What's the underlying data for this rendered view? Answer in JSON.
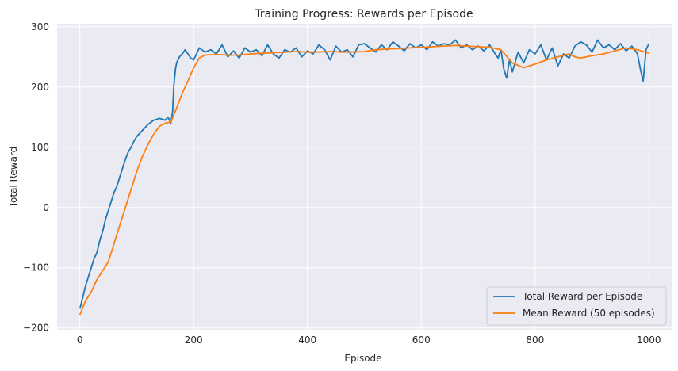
{
  "chart_data": {
    "type": "line",
    "title": "Training Progress: Rewards per Episode",
    "xlabel": "Episode",
    "ylabel": "Total Reward",
    "xlim": [
      -40,
      1040
    ],
    "ylim": [
      -203,
      305
    ],
    "xticks": [
      0,
      200,
      400,
      600,
      800,
      1000
    ],
    "yticks": [
      -200,
      -100,
      0,
      100,
      200,
      300
    ],
    "xtick_labels": [
      "0",
      "200",
      "400",
      "600",
      "800",
      "1000"
    ],
    "ytick_labels": [
      "−200",
      "−100",
      "0",
      "100",
      "200",
      "300"
    ],
    "grid": true,
    "legend_position": "bottom-right",
    "background": "#eaeaf2",
    "series": [
      {
        "name": "Total Reward per Episode",
        "color": "#1f77b4",
        "x": [
          0,
          5,
          10,
          15,
          20,
          25,
          30,
          35,
          40,
          45,
          50,
          55,
          60,
          65,
          70,
          75,
          80,
          85,
          90,
          95,
          100,
          110,
          120,
          130,
          140,
          150,
          155,
          160,
          163,
          165,
          168,
          170,
          175,
          180,
          185,
          190,
          195,
          200,
          210,
          220,
          230,
          240,
          250,
          260,
          270,
          280,
          290,
          300,
          310,
          320,
          330,
          340,
          350,
          360,
          370,
          380,
          390,
          400,
          410,
          420,
          430,
          440,
          450,
          460,
          470,
          480,
          490,
          500,
          510,
          520,
          530,
          540,
          550,
          560,
          570,
          580,
          590,
          600,
          610,
          620,
          630,
          640,
          650,
          660,
          670,
          680,
          690,
          700,
          710,
          720,
          730,
          735,
          740,
          745,
          750,
          755,
          760,
          770,
          780,
          790,
          800,
          810,
          820,
          830,
          840,
          850,
          860,
          870,
          880,
          890,
          900,
          910,
          920,
          930,
          940,
          950,
          960,
          970,
          980,
          985,
          990,
          995,
          1000
        ],
        "values": [
          -168,
          -150,
          -130,
          -115,
          -100,
          -85,
          -75,
          -55,
          -40,
          -20,
          -5,
          10,
          25,
          35,
          50,
          65,
          80,
          92,
          100,
          110,
          118,
          128,
          138,
          145,
          148,
          145,
          150,
          140,
          160,
          200,
          230,
          240,
          250,
          255,
          262,
          255,
          248,
          245,
          265,
          258,
          262,
          255,
          270,
          250,
          260,
          248,
          265,
          258,
          262,
          252,
          270,
          255,
          248,
          262,
          258,
          265,
          250,
          260,
          255,
          270,
          262,
          245,
          268,
          258,
          262,
          250,
          270,
          272,
          265,
          258,
          270,
          262,
          275,
          268,
          260,
          272,
          265,
          270,
          262,
          275,
          268,
          272,
          270,
          278,
          265,
          270,
          262,
          268,
          260,
          270,
          255,
          248,
          262,
          230,
          215,
          245,
          225,
          258,
          240,
          262,
          255,
          270,
          245,
          265,
          235,
          255,
          248,
          268,
          275,
          270,
          258,
          278,
          265,
          270,
          262,
          272,
          260,
          268,
          255,
          230,
          210,
          262,
          272
        ]
      },
      {
        "name": "Mean Reward (50 episodes)",
        "color": "#ff7f0e",
        "x": [
          0,
          10,
          20,
          30,
          40,
          50,
          60,
          70,
          80,
          90,
          100,
          110,
          120,
          130,
          140,
          150,
          160,
          170,
          180,
          190,
          200,
          210,
          220,
          240,
          260,
          280,
          300,
          320,
          340,
          360,
          380,
          400,
          420,
          440,
          460,
          480,
          500,
          520,
          540,
          560,
          580,
          600,
          620,
          640,
          660,
          680,
          700,
          720,
          740,
          760,
          780,
          800,
          820,
          840,
          860,
          870,
          880,
          900,
          920,
          940,
          960,
          980,
          1000
        ],
        "values": [
          -178,
          -155,
          -140,
          -120,
          -105,
          -90,
          -60,
          -30,
          0,
          30,
          60,
          85,
          105,
          122,
          135,
          140,
          142,
          165,
          190,
          210,
          232,
          248,
          253,
          254,
          253,
          253,
          255,
          256,
          257,
          258,
          259,
          258,
          258,
          259,
          258,
          258,
          259,
          262,
          263,
          264,
          265,
          266,
          267,
          268,
          269,
          268,
          267,
          266,
          262,
          240,
          232,
          238,
          245,
          250,
          255,
          250,
          248,
          252,
          255,
          260,
          265,
          262,
          256
        ]
      }
    ]
  }
}
